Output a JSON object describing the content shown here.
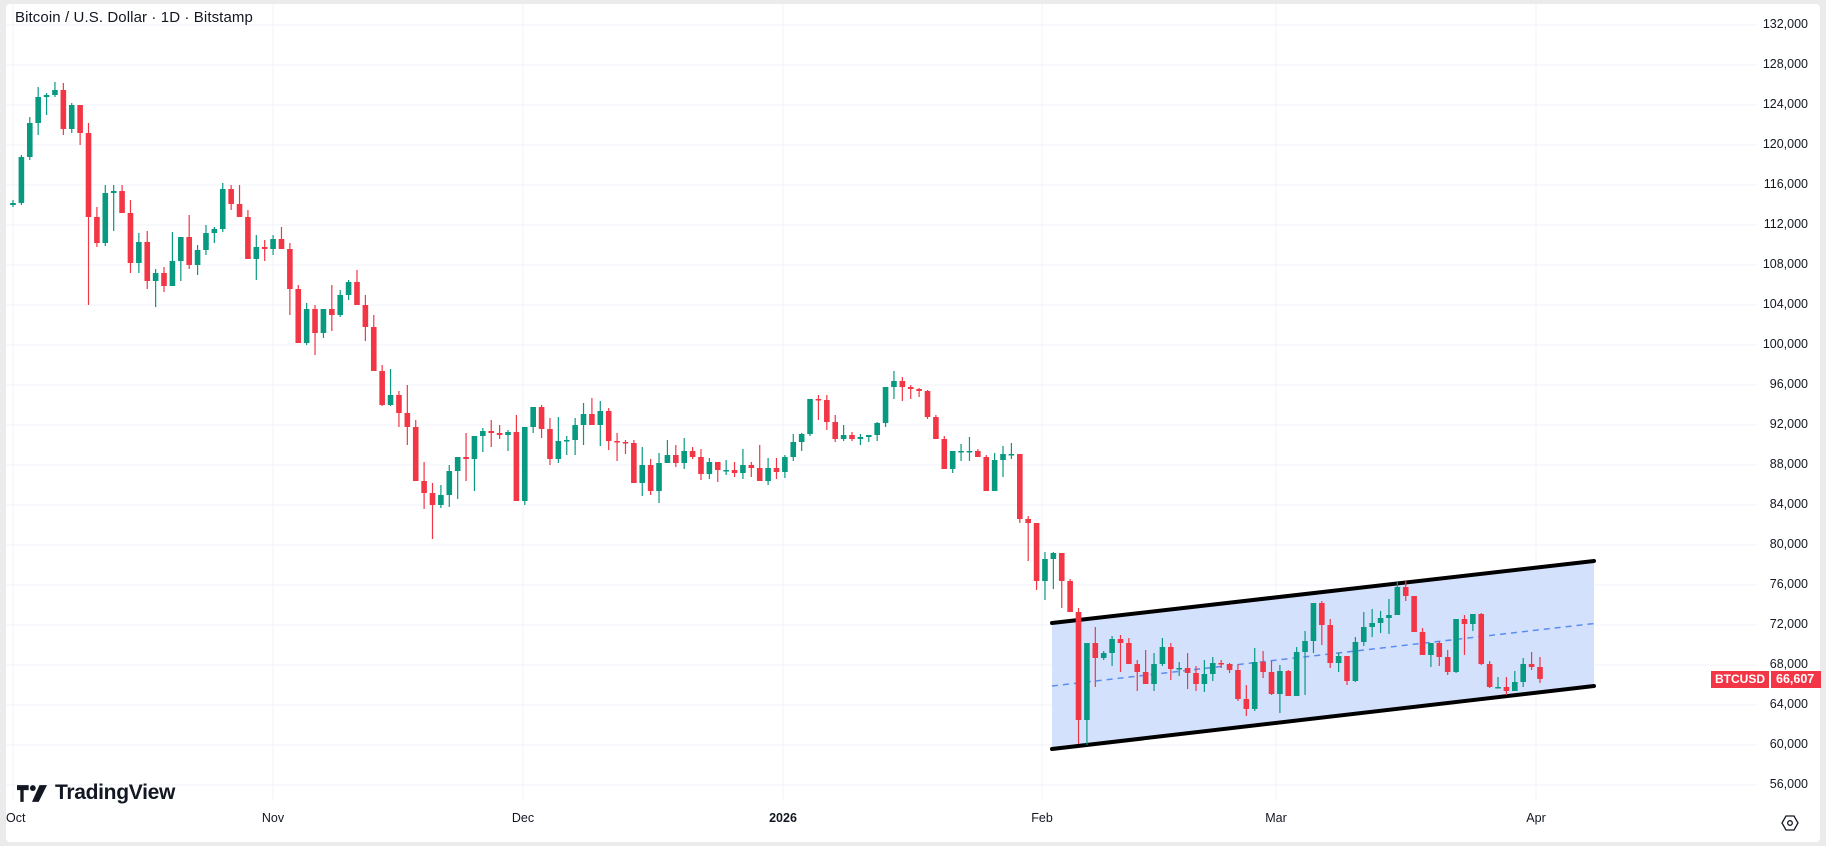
{
  "header": {
    "title": "Bitcoin / U.S. Dollar · 1D · Bitstamp"
  },
  "price_scale": {
    "ticks": [
      "132,000",
      "128,000",
      "124,000",
      "120,000",
      "116,000",
      "112,000",
      "108,000",
      "104,000",
      "100,000",
      "96,000",
      "92,000",
      "88,000",
      "84,000",
      "80,000",
      "76,000",
      "72,000",
      "68,000",
      "64,000",
      "60,000",
      "56,000"
    ]
  },
  "time_scale": {
    "ticks": [
      "Oct",
      "Nov",
      "Dec",
      "2026",
      "Feb",
      "Mar",
      "Apr"
    ]
  },
  "last_price": {
    "symbol": "BTCUSD",
    "value": "66,607",
    "color": "#f23645"
  },
  "branding": {
    "logo_text": "TradingView"
  },
  "colors": {
    "up": "#089981",
    "down": "#f23645",
    "channel_fill": "#d1dffc",
    "channel_border": "#000000",
    "midline": "#5b8cf0",
    "grid": "#f0f3fa"
  },
  "chart_data": {
    "type": "candlestick",
    "title": "Bitcoin / U.S. Dollar · 1D · Bitstamp",
    "symbol": "BTCUSD",
    "interval": "1D",
    "exchange": "Bitstamp",
    "xlabel": "",
    "ylabel": "",
    "ylim": [
      52000,
      134000
    ],
    "x_ticks": [
      "Oct",
      "Nov",
      "Dec",
      "2026",
      "Feb",
      "Mar",
      "Apr"
    ],
    "y_ticks": [
      132000,
      128000,
      124000,
      120000,
      116000,
      112000,
      108000,
      104000,
      100000,
      96000,
      92000,
      88000,
      84000,
      80000,
      76000,
      72000,
      68000,
      64000,
      60000,
      56000
    ],
    "grid": true,
    "last_price": 66607,
    "start_date": "2025-10-01",
    "ohlc": [
      [
        114000,
        114500,
        113800,
        114200
      ],
      [
        114200,
        119000,
        114000,
        118800
      ],
      [
        118800,
        122800,
        118500,
        122200
      ],
      [
        122200,
        125800,
        121000,
        124800
      ],
      [
        124800,
        125200,
        123000,
        125000
      ],
      [
        125000,
        126300,
        124800,
        125500
      ],
      [
        125500,
        126200,
        121000,
        121600
      ],
      [
        121600,
        124200,
        121200,
        124000
      ],
      [
        124000,
        124000,
        120000,
        121200
      ],
      [
        121200,
        122200,
        104000,
        112800
      ],
      [
        112800,
        113800,
        109800,
        110200
      ],
      [
        110200,
        116000,
        109900,
        115200
      ],
      [
        115200,
        116000,
        111400,
        115400
      ],
      [
        115400,
        116000,
        113400,
        113200
      ],
      [
        113200,
        114500,
        107200,
        108200
      ],
      [
        108200,
        111200,
        107200,
        110300
      ],
      [
        110300,
        111400,
        105600,
        106400
      ],
      [
        106400,
        107600,
        103800,
        107200
      ],
      [
        107200,
        107800,
        105300,
        105900
      ],
      [
        105900,
        111300,
        106000,
        108400
      ],
      [
        108400,
        110400,
        106400,
        110800
      ],
      [
        110800,
        113000,
        107600,
        108000
      ],
      [
        108000,
        110000,
        107000,
        109500
      ],
      [
        109500,
        112000,
        109000,
        111200
      ],
      [
        111200,
        111800,
        110200,
        111600
      ],
      [
        111600,
        116200,
        111300,
        115600
      ],
      [
        115600,
        116000,
        113500,
        114100
      ],
      [
        114100,
        116000,
        113400,
        112800
      ],
      [
        112800,
        113500,
        110000,
        108600
      ],
      [
        108600,
        111000,
        106500,
        109800
      ],
      [
        109800,
        110500,
        108400,
        109600
      ],
      [
        109600,
        111000,
        109000,
        110600
      ],
      [
        110600,
        111800,
        109800,
        109600
      ],
      [
        109600,
        110200,
        103000,
        105600
      ],
      [
        105600,
        106000,
        100500,
        100200
      ],
      [
        100200,
        104200,
        100000,
        103600
      ],
      [
        103600,
        104000,
        99000,
        101200
      ],
      [
        101200,
        103500,
        100700,
        103600
      ],
      [
        103600,
        106000,
        101400,
        103000
      ],
      [
        103000,
        105500,
        102800,
        105000
      ],
      [
        105000,
        106500,
        104500,
        106300
      ],
      [
        106300,
        107500,
        106000,
        104000
      ],
      [
        104000,
        105000,
        100400,
        101800
      ],
      [
        101800,
        103000,
        98800,
        97400
      ],
      [
        97400,
        98000,
        93900,
        94000
      ],
      [
        94000,
        97600,
        93900,
        95000
      ],
      [
        95000,
        95400,
        91800,
        93200
      ],
      [
        93200,
        96000,
        90000,
        91800
      ],
      [
        91800,
        92500,
        88000,
        86400
      ],
      [
        86400,
        88300,
        83600,
        85200
      ],
      [
        85200,
        86200,
        80600,
        84000
      ],
      [
        84000,
        86000,
        83700,
        85000
      ],
      [
        85000,
        88000,
        83800,
        87400
      ],
      [
        87400,
        88000,
        84600,
        88800
      ],
      [
        88800,
        91200,
        86400,
        88600
      ],
      [
        88600,
        89400,
        85400,
        90900
      ],
      [
        90900,
        91700,
        89300,
        91400
      ],
      [
        91400,
        92500,
        89800,
        91200
      ],
      [
        91200,
        92000,
        90600,
        91000
      ],
      [
        91000,
        91500,
        89400,
        91300
      ],
      [
        91300,
        93000,
        87400,
        84400
      ],
      [
        84400,
        91800,
        84000,
        91800
      ],
      [
        91800,
        93800,
        91200,
        93800
      ],
      [
        93800,
        94000,
        90700,
        91600
      ],
      [
        91600,
        92700,
        88000,
        88600
      ],
      [
        88600,
        92800,
        88200,
        90400
      ],
      [
        90400,
        90900,
        89000,
        90500
      ],
      [
        90500,
        92700,
        89000,
        92000
      ],
      [
        92000,
        94200,
        90000,
        93100
      ],
      [
        93100,
        94700,
        92000,
        92000
      ],
      [
        92000,
        94400,
        89900,
        93400
      ],
      [
        93400,
        93700,
        89500,
        90400
      ],
      [
        90400,
        91200,
        88400,
        90300
      ],
      [
        90300,
        90500,
        89100,
        90200
      ],
      [
        90200,
        90500,
        87200,
        86200
      ],
      [
        86200,
        89800,
        84900,
        88000
      ],
      [
        88000,
        88600,
        85000,
        85400
      ],
      [
        85400,
        89200,
        84200,
        88200
      ],
      [
        88200,
        90500,
        88200,
        89000
      ],
      [
        89000,
        90000,
        87800,
        88200
      ],
      [
        88200,
        90700,
        87600,
        89400
      ],
      [
        89400,
        89800,
        88600,
        88800
      ],
      [
        88800,
        89600,
        86500,
        87100
      ],
      [
        87100,
        88700,
        86600,
        88300
      ],
      [
        88300,
        88300,
        86300,
        87500
      ],
      [
        87500,
        88500,
        87000,
        87500
      ],
      [
        87500,
        88300,
        86800,
        87200
      ],
      [
        87200,
        89600,
        86600,
        88000
      ],
      [
        88000,
        88300,
        86800,
        87700
      ],
      [
        87700,
        90000,
        86400,
        86400
      ],
      [
        86400,
        88700,
        86000,
        87700
      ],
      [
        87700,
        88700,
        86600,
        87300
      ],
      [
        87300,
        89000,
        86700,
        88800
      ],
      [
        88800,
        91100,
        88400,
        90300
      ],
      [
        90300,
        91200,
        89400,
        91100
      ],
      [
        91100,
        93400,
        90900,
        94600
      ],
      [
        94600,
        95000,
        92500,
        94500
      ],
      [
        94500,
        95000,
        91500,
        92300
      ],
      [
        92300,
        93000,
        90300,
        90600
      ],
      [
        90600,
        92000,
        90400,
        91000
      ],
      [
        91000,
        91300,
        90400,
        90600
      ],
      [
        90600,
        91100,
        90000,
        90800
      ],
      [
        90800,
        91000,
        90300,
        91000
      ],
      [
        91000,
        92300,
        90400,
        92200
      ],
      [
        92200,
        95200,
        91800,
        95800
      ],
      [
        95800,
        97400,
        94600,
        96400
      ],
      [
        96400,
        96800,
        94400,
        95800
      ],
      [
        95800,
        96000,
        94600,
        95600
      ],
      [
        95600,
        95700,
        94800,
        95400
      ],
      [
        95400,
        95500,
        92600,
        92800
      ],
      [
        92800,
        93000,
        90800,
        90600
      ],
      [
        90600,
        90900,
        87600,
        87600
      ],
      [
        87600,
        89100,
        87200,
        89400
      ],
      [
        89400,
        90100,
        88400,
        89400
      ],
      [
        89400,
        90800,
        88400,
        89400
      ],
      [
        89400,
        89600,
        88800,
        88800
      ],
      [
        88800,
        89000,
        85800,
        85400
      ],
      [
        85400,
        89200,
        85400,
        88500
      ],
      [
        88500,
        89900,
        86800,
        89100
      ],
      [
        89100,
        90200,
        88600,
        89100
      ],
      [
        89100,
        89100,
        82200,
        82600
      ],
      [
        82600,
        82900,
        78400,
        82200
      ],
      [
        82200,
        82200,
        75500,
        76400
      ],
      [
        76400,
        79300,
        74500,
        78600
      ],
      [
        78600,
        79300,
        75600,
        79200
      ],
      [
        79200,
        79200,
        73700,
        76400
      ],
      [
        76400,
        76600,
        73400,
        73300
      ],
      [
        73300,
        73700,
        60100,
        62500
      ],
      [
        62500,
        69400,
        60000,
        70200
      ],
      [
        70200,
        71800,
        65800,
        68700
      ],
      [
        68700,
        69400,
        68500,
        69200
      ],
      [
        69200,
        70900,
        67900,
        70600
      ],
      [
        70600,
        71000,
        67300,
        70200
      ],
      [
        70200,
        70700,
        68200,
        68100
      ],
      [
        68100,
        68500,
        65400,
        67300
      ],
      [
        67300,
        69500,
        66200,
        66100
      ],
      [
        66100,
        69200,
        65400,
        68100
      ],
      [
        68100,
        70700,
        67900,
        69800
      ],
      [
        69800,
        70200,
        66500,
        67600
      ],
      [
        67600,
        68300,
        66900,
        67700
      ],
      [
        67700,
        69200,
        65600,
        67200
      ],
      [
        67200,
        67900,
        65400,
        66100
      ],
      [
        66100,
        68500,
        65300,
        67100
      ],
      [
        67100,
        68800,
        66400,
        68200
      ],
      [
        68200,
        68500,
        67700,
        68100
      ],
      [
        68100,
        68200,
        67200,
        67500
      ],
      [
        67500,
        68100,
        64400,
        64600
      ],
      [
        64600,
        66000,
        62900,
        63600
      ],
      [
        63600,
        69700,
        63400,
        68300
      ],
      [
        68300,
        69400,
        66700,
        67300
      ],
      [
        67300,
        68400,
        65000,
        65100
      ],
      [
        65100,
        68000,
        63200,
        67400
      ],
      [
        67400,
        67500,
        65800,
        64900
      ],
      [
        64900,
        69800,
        65000,
        69300
      ],
      [
        69300,
        71400,
        65000,
        70400
      ],
      [
        70400,
        74100,
        69200,
        74200
      ],
      [
        74200,
        74400,
        70000,
        72000
      ],
      [
        72000,
        72600,
        67700,
        68200
      ],
      [
        68200,
        69200,
        67300,
        68900
      ],
      [
        68900,
        68900,
        66000,
        66400
      ],
      [
        66400,
        70800,
        66300,
        70300
      ],
      [
        70300,
        73300,
        69900,
        71800
      ],
      [
        71800,
        73600,
        70800,
        72200
      ],
      [
        72200,
        73400,
        71200,
        72700
      ],
      [
        72700,
        74600,
        71100,
        73000
      ],
      [
        73000,
        76400,
        73000,
        75800
      ],
      [
        75800,
        76400,
        74400,
        74900
      ],
      [
        74900,
        74900,
        72200,
        71300
      ],
      [
        71300,
        71700,
        69200,
        69000
      ],
      [
        69000,
        69700,
        67800,
        70200
      ],
      [
        70200,
        70400,
        67900,
        68800
      ],
      [
        68800,
        69500,
        67000,
        67300
      ],
      [
        67300,
        72500,
        67200,
        72600
      ],
      [
        72600,
        73000,
        69000,
        72100
      ],
      [
        72100,
        73100,
        71400,
        73100
      ],
      [
        73100,
        73200,
        68000,
        68100
      ],
      [
        68100,
        68400,
        65700,
        65800
      ],
      [
        65800,
        66800,
        65800,
        65800
      ],
      [
        65800,
        66800,
        65000,
        65400
      ],
      [
        65400,
        67400,
        65500,
        66300
      ],
      [
        66300,
        68700,
        65800,
        68100
      ],
      [
        68100,
        69300,
        67500,
        67800
      ],
      [
        67800,
        68800,
        66200,
        66607
      ]
    ],
    "drawings": {
      "parallel_channel": {
        "upper": {
          "start": {
            "date": "2026-02-01",
            "price": 72200
          },
          "end": {
            "date": "2026-04-07",
            "price": 78400
          }
        },
        "lower": {
          "start": {
            "date": "2026-02-01",
            "price": 59600
          },
          "end": {
            "date": "2026-04-07",
            "price": 65900
          }
        },
        "midline": {
          "start": {
            "date": "2026-02-01",
            "price": 65900
          },
          "end": {
            "date": "2026-04-07",
            "price": 72200
          },
          "style": "dashed"
        }
      }
    }
  }
}
